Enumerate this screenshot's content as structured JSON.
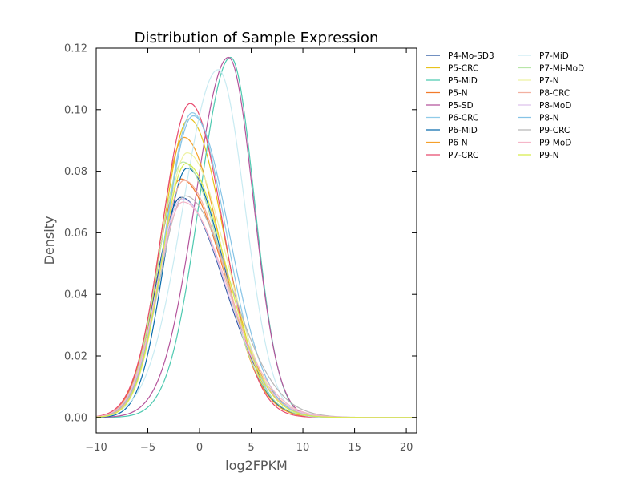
{
  "chart_data": {
    "type": "line",
    "title": "Distribution of Sample Expression",
    "xlabel": "log2FPKM",
    "ylabel": "Density",
    "xlim": [
      -10,
      21
    ],
    "ylim": [
      -0.005,
      0.12
    ],
    "xticks": [
      -10,
      -5,
      0,
      5,
      10,
      15,
      20
    ],
    "xtick_labels": [
      "−10",
      "−5",
      "0",
      "5",
      "10",
      "15",
      "20"
    ],
    "yticks": [
      0.0,
      0.02,
      0.04,
      0.06,
      0.08,
      0.1,
      0.12
    ],
    "ytick_labels": [
      "0.00",
      "0.02",
      "0.04",
      "0.06",
      "0.08",
      "0.10",
      "0.12"
    ],
    "grid": false,
    "legend_position": "outside-right",
    "series": [
      {
        "name": "P4-Mo-SD3",
        "color": "#1f4e9c",
        "peak_x": -1.8,
        "peak_y": 0.0715,
        "sd_left": 2.4,
        "sd_right": 4.2
      },
      {
        "name": "P5-CRC",
        "color": "#e8c21c",
        "peak_x": -1.0,
        "peak_y": 0.097,
        "sd_left": 2.6,
        "sd_right": 3.4
      },
      {
        "name": "P5-MiD",
        "color": "#4ec9b0",
        "peak_x": 3.0,
        "peak_y": 0.117,
        "sd_left": 3.0,
        "sd_right": 2.3
      },
      {
        "name": "P5-N",
        "color": "#f27b2a",
        "peak_x": -1.8,
        "peak_y": 0.0775,
        "sd_left": 2.4,
        "sd_right": 4.2
      },
      {
        "name": "P5-SD",
        "color": "#b5559c",
        "peak_x": 2.8,
        "peak_y": 0.117,
        "sd_left": 3.2,
        "sd_right": 2.4
      },
      {
        "name": "P6-CRC",
        "color": "#8fcbe8",
        "peak_x": -0.7,
        "peak_y": 0.099,
        "sd_left": 2.6,
        "sd_right": 3.3
      },
      {
        "name": "P6-MiD",
        "color": "#0a6cad",
        "peak_x": -1.2,
        "peak_y": 0.081,
        "sd_left": 2.3,
        "sd_right": 3.6
      },
      {
        "name": "P6-N",
        "color": "#f5a02a",
        "peak_x": -1.5,
        "peak_y": 0.091,
        "sd_left": 2.4,
        "sd_right": 3.6
      },
      {
        "name": "P7-CRC",
        "color": "#e84a6e",
        "peak_x": -0.9,
        "peak_y": 0.102,
        "sd_left": 2.7,
        "sd_right": 3.2
      },
      {
        "name": "P7-MiD",
        "color": "#c9ebf2",
        "peak_x": 1.8,
        "peak_y": 0.113,
        "sd_left": 3.4,
        "sd_right": 2.6
      },
      {
        "name": "P7-Mi-MoD",
        "color": "#b8e6a8",
        "peak_x": -1.6,
        "peak_y": 0.083,
        "sd_left": 2.4,
        "sd_right": 3.8
      },
      {
        "name": "P7-N",
        "color": "#eef2a2",
        "peak_x": -1.2,
        "peak_y": 0.086,
        "sd_left": 2.4,
        "sd_right": 3.8
      },
      {
        "name": "P8-CRC",
        "color": "#f2b0a0",
        "peak_x": -1.5,
        "peak_y": 0.077,
        "sd_left": 2.4,
        "sd_right": 4.0
      },
      {
        "name": "P8-MoD",
        "color": "#ddc2ec",
        "peak_x": -1.7,
        "peak_y": 0.071,
        "sd_left": 2.4,
        "sd_right": 4.2
      },
      {
        "name": "P8-N",
        "color": "#86c3e6",
        "peak_x": -0.6,
        "peak_y": 0.098,
        "sd_left": 2.7,
        "sd_right": 3.5
      },
      {
        "name": "P9-CRC",
        "color": "#b8b8b8",
        "peak_x": -1.4,
        "peak_y": 0.072,
        "sd_left": 2.5,
        "sd_right": 4.4
      },
      {
        "name": "P9-MoD",
        "color": "#f5b6c8",
        "peak_x": -1.6,
        "peak_y": 0.07,
        "sd_left": 2.5,
        "sd_right": 4.3
      },
      {
        "name": "P9-N",
        "color": "#d8ec4a",
        "peak_x": -1.3,
        "peak_y": 0.0825,
        "sd_left": 2.4,
        "sd_right": 3.8
      }
    ]
  }
}
